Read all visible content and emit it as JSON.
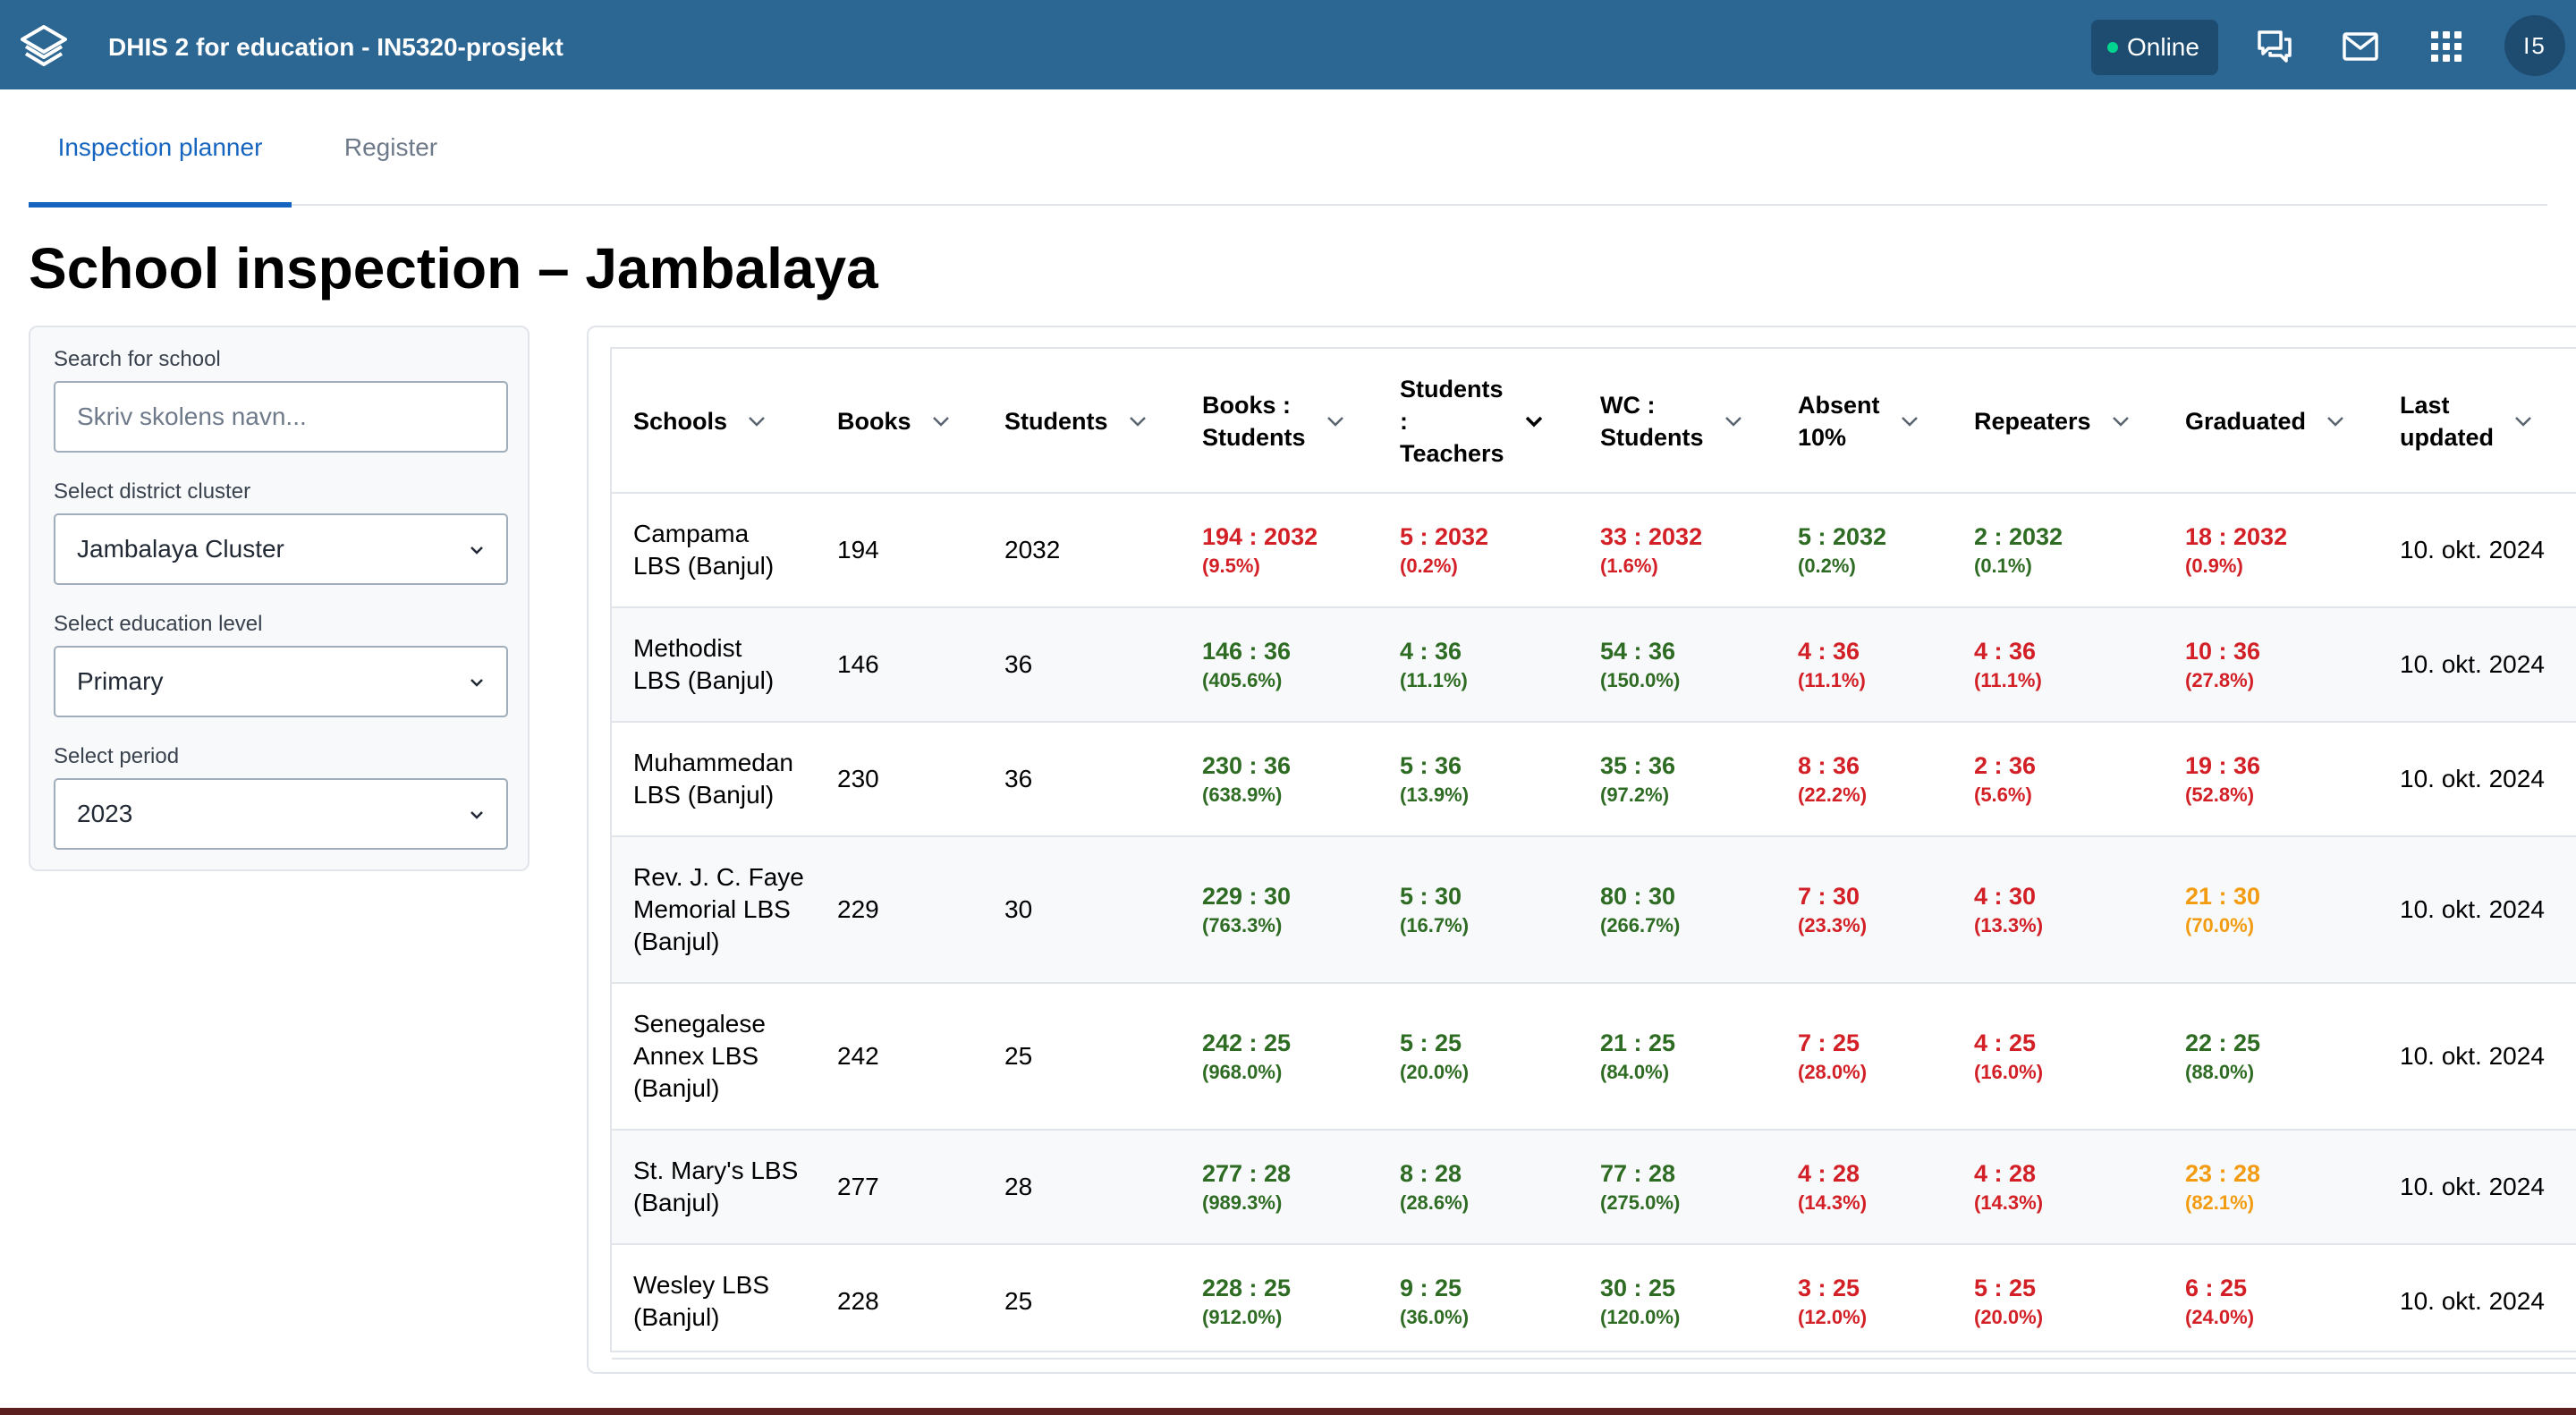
{
  "header": {
    "app_title": "DHIS 2 for education - IN5320-prosjekt",
    "online_label": "Online",
    "avatar_initials": "I5",
    "icons": [
      "messages-icon",
      "mail-icon",
      "apps-grid-icon"
    ]
  },
  "tabs": [
    {
      "label": "Inspection planner",
      "active": true
    },
    {
      "label": "Register",
      "active": false
    }
  ],
  "page_title": "School inspection – Jambalaya",
  "filters": {
    "search_label": "Search for school",
    "search_placeholder": "Skriv skolens navn...",
    "cluster_label": "Select district cluster",
    "cluster_value": "Jambalaya Cluster",
    "level_label": "Select education level",
    "level_value": "Primary",
    "period_label": "Select period",
    "period_value": "2023"
  },
  "colors": {
    "good": "#2e6b23",
    "bad": "#d32026",
    "warn": "#f39c12",
    "header_bg": "#2c6693"
  },
  "table": {
    "headers": [
      "Schools",
      "Books",
      "Students",
      "Books :\nStudents",
      "Students\n:\nTeachers",
      "WC :\nStudents",
      "Absent\n10%",
      "Repeaters",
      "Graduated",
      "Last\nupdated"
    ],
    "rows": [
      {
        "school": "Campama\nLBS (Banjul)",
        "books": "194",
        "students": "2032",
        "metrics": [
          {
            "ratio": "194 : 2032",
            "pct": "(9.5%)",
            "status": "bad"
          },
          {
            "ratio": "5 : 2032",
            "pct": "(0.2%)",
            "status": "bad"
          },
          {
            "ratio": "33 : 2032",
            "pct": "(1.6%)",
            "status": "bad"
          },
          {
            "ratio": "5 : 2032",
            "pct": "(0.2%)",
            "status": "good"
          },
          {
            "ratio": "2 : 2032",
            "pct": "(0.1%)",
            "status": "good"
          },
          {
            "ratio": "18 : 2032",
            "pct": "(0.9%)",
            "status": "bad"
          }
        ],
        "updated": "10. okt. 2024"
      },
      {
        "school": "Methodist\nLBS (Banjul)",
        "books": "146",
        "students": "36",
        "metrics": [
          {
            "ratio": "146 : 36",
            "pct": "(405.6%)",
            "status": "good"
          },
          {
            "ratio": "4 : 36",
            "pct": "(11.1%)",
            "status": "good"
          },
          {
            "ratio": "54 : 36",
            "pct": "(150.0%)",
            "status": "good"
          },
          {
            "ratio": "4 : 36",
            "pct": "(11.1%)",
            "status": "bad"
          },
          {
            "ratio": "4 : 36",
            "pct": "(11.1%)",
            "status": "bad"
          },
          {
            "ratio": "10 : 36",
            "pct": "(27.8%)",
            "status": "bad"
          }
        ],
        "updated": "10. okt. 2024"
      },
      {
        "school": "Muhammedan\nLBS (Banjul)",
        "books": "230",
        "students": "36",
        "metrics": [
          {
            "ratio": "230 : 36",
            "pct": "(638.9%)",
            "status": "good"
          },
          {
            "ratio": "5 : 36",
            "pct": "(13.9%)",
            "status": "good"
          },
          {
            "ratio": "35 : 36",
            "pct": "(97.2%)",
            "status": "good"
          },
          {
            "ratio": "8 : 36",
            "pct": "(22.2%)",
            "status": "bad"
          },
          {
            "ratio": "2 : 36",
            "pct": "(5.6%)",
            "status": "bad"
          },
          {
            "ratio": "19 : 36",
            "pct": "(52.8%)",
            "status": "bad"
          }
        ],
        "updated": "10. okt. 2024"
      },
      {
        "school": "Rev. J. C. Faye\nMemorial LBS\n(Banjul)",
        "books": "229",
        "students": "30",
        "metrics": [
          {
            "ratio": "229 : 30",
            "pct": "(763.3%)",
            "status": "good"
          },
          {
            "ratio": "5 : 30",
            "pct": "(16.7%)",
            "status": "good"
          },
          {
            "ratio": "80 : 30",
            "pct": "(266.7%)",
            "status": "good"
          },
          {
            "ratio": "7 : 30",
            "pct": "(23.3%)",
            "status": "bad"
          },
          {
            "ratio": "4 : 30",
            "pct": "(13.3%)",
            "status": "bad"
          },
          {
            "ratio": "21 : 30",
            "pct": "(70.0%)",
            "status": "warn"
          }
        ],
        "updated": "10. okt. 2024"
      },
      {
        "school": "Senegalese\nAnnex LBS\n(Banjul)",
        "books": "242",
        "students": "25",
        "metrics": [
          {
            "ratio": "242 : 25",
            "pct": "(968.0%)",
            "status": "good"
          },
          {
            "ratio": "5 : 25",
            "pct": "(20.0%)",
            "status": "good"
          },
          {
            "ratio": "21 : 25",
            "pct": "(84.0%)",
            "status": "good"
          },
          {
            "ratio": "7 : 25",
            "pct": "(28.0%)",
            "status": "bad"
          },
          {
            "ratio": "4 : 25",
            "pct": "(16.0%)",
            "status": "bad"
          },
          {
            "ratio": "22 : 25",
            "pct": "(88.0%)",
            "status": "good"
          }
        ],
        "updated": "10. okt. 2024"
      },
      {
        "school": "St. Mary's LBS\n(Banjul)",
        "books": "277",
        "students": "28",
        "metrics": [
          {
            "ratio": "277 : 28",
            "pct": "(989.3%)",
            "status": "good"
          },
          {
            "ratio": "8 : 28",
            "pct": "(28.6%)",
            "status": "good"
          },
          {
            "ratio": "77 : 28",
            "pct": "(275.0%)",
            "status": "good"
          },
          {
            "ratio": "4 : 28",
            "pct": "(14.3%)",
            "status": "bad"
          },
          {
            "ratio": "4 : 28",
            "pct": "(14.3%)",
            "status": "bad"
          },
          {
            "ratio": "23 : 28",
            "pct": "(82.1%)",
            "status": "warn"
          }
        ],
        "updated": "10. okt. 2024"
      },
      {
        "school": "Wesley LBS\n(Banjul)",
        "books": "228",
        "students": "25",
        "metrics": [
          {
            "ratio": "228 : 25",
            "pct": "(912.0%)",
            "status": "good"
          },
          {
            "ratio": "9 : 25",
            "pct": "(36.0%)",
            "status": "good"
          },
          {
            "ratio": "30 : 25",
            "pct": "(120.0%)",
            "status": "good"
          },
          {
            "ratio": "3 : 25",
            "pct": "(12.0%)",
            "status": "bad"
          },
          {
            "ratio": "5 : 25",
            "pct": "(20.0%)",
            "status": "bad"
          },
          {
            "ratio": "6 : 25",
            "pct": "(24.0%)",
            "status": "bad"
          }
        ],
        "updated": "10. okt. 2024"
      }
    ]
  }
}
